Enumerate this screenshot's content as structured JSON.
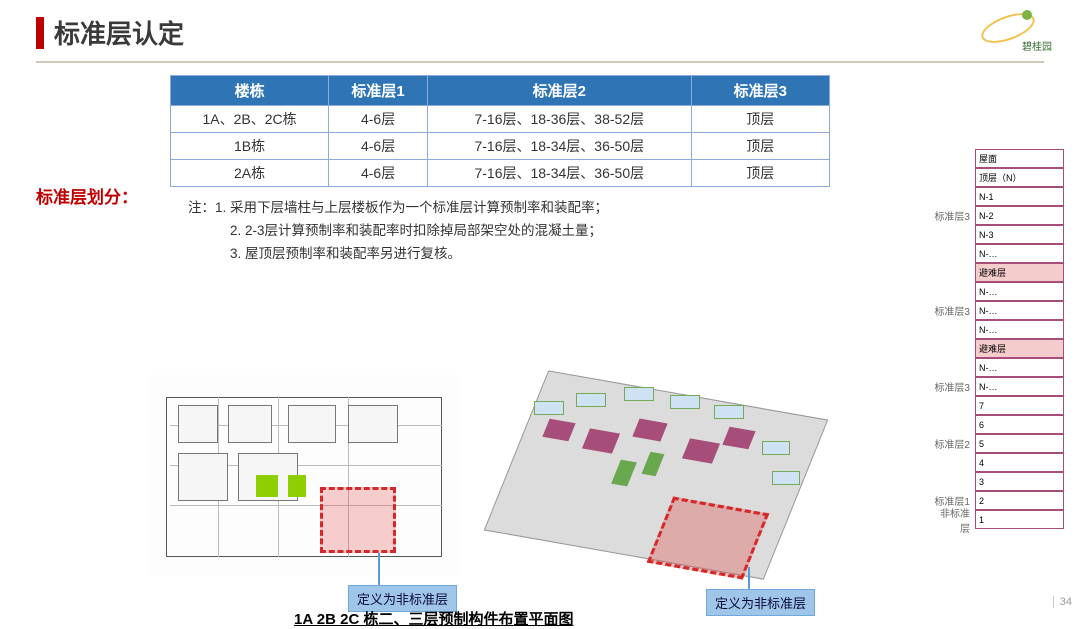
{
  "title": "标准层认定",
  "logo_text": "碧桂园",
  "left_label": "标准层划分：",
  "table": {
    "header_bg": "#2f75b5",
    "columns": [
      "楼栋",
      "标准层1",
      "标准层2",
      "标准层3"
    ],
    "rows": [
      [
        "1A、2B、2C栋",
        "4-6层",
        "7-16层、18-36层、38-52层",
        "顶层"
      ],
      [
        "1B栋",
        "4-6层",
        "7-16层、18-34层、36-50层",
        "顶层"
      ],
      [
        "2A栋",
        "4-6层",
        "7-16层、18-34层、36-50层",
        "顶层"
      ]
    ]
  },
  "notes": {
    "n1": "注：1. 采用下层墙柱与上层楼板作为一个标准层计算预制率和装配率；",
    "n2": "2. 2-3层计算预制率和装配率时扣除掉局部架空处的混凝土量；",
    "n3": "3. 屋顶层预制率和装配率另进行复核。"
  },
  "callout_text": "定义为非标准层",
  "caption": "1A 2B 2C 栋二、三层预制构件布置平面图",
  "side": {
    "head": "屋面",
    "rows": [
      {
        "lab": "",
        "cell": "顶层（N）"
      },
      {
        "lab": "",
        "cell": "N-1"
      },
      {
        "lab": "标准层3",
        "cell": "N-2"
      },
      {
        "lab": "",
        "cell": "N-3"
      },
      {
        "lab": "",
        "cell": "N-…"
      },
      {
        "lab": "",
        "cell": "避难层"
      },
      {
        "lab": "",
        "cell": "N-…"
      },
      {
        "lab": "标准层3",
        "cell": "N-…"
      },
      {
        "lab": "",
        "cell": "N-…"
      },
      {
        "lab": "",
        "cell": "避难层"
      },
      {
        "lab": "",
        "cell": "N-…"
      },
      {
        "lab": "标准层3",
        "cell": "N-…"
      },
      {
        "lab": "",
        "cell": "7"
      },
      {
        "lab": "",
        "cell": "6"
      },
      {
        "lab": "标准层2",
        "cell": "5"
      },
      {
        "lab": "",
        "cell": "4"
      },
      {
        "lab": "",
        "cell": "3"
      },
      {
        "lab": "标准层1",
        "cell": "2"
      },
      {
        "lab": "非标准层",
        "cell": "1"
      }
    ]
  },
  "pagenum": "34",
  "colors": {
    "accent_red": "#c00000",
    "table_header": "#2f75b5",
    "callout_bg": "#9fc5e8",
    "dashed_red": "#d62828",
    "magenta": "#a64d79"
  }
}
